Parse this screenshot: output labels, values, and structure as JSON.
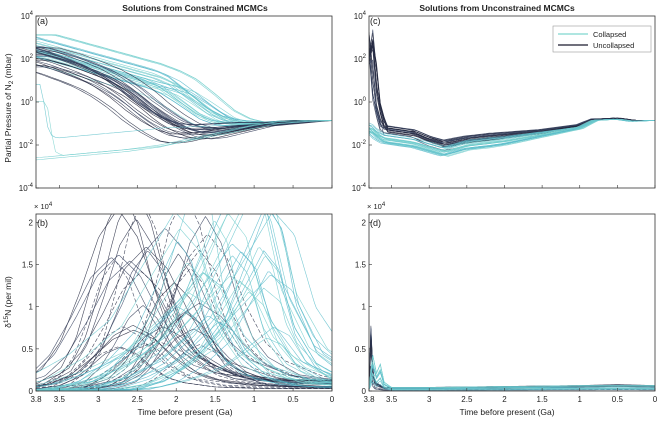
{
  "chart_data": [
    {
      "type": "line",
      "panel": "(a)",
      "title": "Solutions from Constrained MCMCs",
      "ylabel": "Partial Pressure of N",
      "ylabel_sub": "2",
      "ylabel_unit": " (mbar)",
      "xlabel": "",
      "yscale": "log",
      "xlim": [
        3.8,
        0
      ],
      "ylim_exp": [
        -4,
        4
      ],
      "ytick_base": "10",
      "ytick_exps": [
        "-4",
        "-2",
        "0",
        "2",
        "4"
      ],
      "xticks": [],
      "series": [
        {
          "name": "Collapsed (representative)",
          "x": [
            3.8,
            3.5,
            3.2,
            3.0,
            2.8,
            2.5,
            2.2,
            2.0,
            1.8,
            1.5,
            1.3,
            1.1,
            0.8,
            0.5,
            0.2,
            0
          ],
          "y_exp": [
            2.6,
            2.3,
            2.0,
            1.8,
            1.6,
            1.3,
            1.0,
            0.7,
            0.2,
            -0.6,
            -0.9,
            -1.0,
            -1.0,
            -0.9,
            -0.85,
            -0.85
          ]
        },
        {
          "name": "Uncollapsed (representative)",
          "x": [
            3.8,
            3.5,
            3.2,
            3.0,
            2.8,
            2.6,
            2.4,
            2.2,
            2.0,
            1.8,
            1.6,
            1.4,
            1.2,
            1.0,
            0.7,
            0.4,
            0.2,
            0
          ],
          "y_exp": [
            2.2,
            1.9,
            1.5,
            1.2,
            0.8,
            0.3,
            -0.3,
            -0.8,
            -1.2,
            -1.4,
            -1.4,
            -1.3,
            -1.2,
            -1.1,
            -1.0,
            -0.9,
            -0.85,
            -0.85
          ]
        },
        {
          "name": "Collapsed low branch",
          "x": [
            3.8,
            3.7,
            3.6,
            3.3,
            3.0,
            2.7,
            2.4,
            2.0,
            1.6,
            1.2,
            0.8,
            0.4,
            0
          ],
          "y_exp": [
            0.3,
            -2.0,
            -2.2,
            -2.1,
            -2.0,
            -1.9,
            -1.8,
            -1.6,
            -1.4,
            -1.2,
            -1.0,
            -0.9,
            -0.85
          ]
        }
      ]
    },
    {
      "type": "line",
      "panel": "(c)",
      "title": "Solutions from Unconstrained MCMCs",
      "yscale": "log",
      "xlim": [
        3.8,
        0
      ],
      "ylim_exp": [
        -4,
        4
      ],
      "ytick_base": "10",
      "ytick_exps": [
        "-4",
        "-2",
        "0",
        "2",
        "4"
      ],
      "legend": {
        "location": "top-right",
        "entries": [
          {
            "label": "Collapsed",
            "color": "#7fd6cf"
          },
          {
            "label": "Uncollapsed",
            "color": "#1a1a2e"
          }
        ]
      },
      "series": [
        {
          "name": "Uncollapsed (representative)",
          "x": [
            3.8,
            3.78,
            3.75,
            3.7,
            3.6,
            3.4,
            3.2,
            3.0,
            2.8,
            2.5,
            2.0,
            1.5,
            1.0,
            0.8,
            0.5,
            0.3,
            0
          ],
          "y_exp": [
            2.0,
            3.2,
            2.2,
            0.0,
            -1.3,
            -1.4,
            -1.5,
            -1.8,
            -2.0,
            -1.8,
            -1.6,
            -1.4,
            -1.1,
            -0.8,
            -0.75,
            -0.85,
            -0.85
          ]
        },
        {
          "name": "Collapsed (representative)",
          "x": [
            3.8,
            3.75,
            3.7,
            3.6,
            3.4,
            3.2,
            3.0,
            2.8,
            2.5,
            2.0,
            1.5,
            1.0,
            0.8,
            0.5,
            0.3,
            0
          ],
          "y_exp": [
            -1.2,
            -1.3,
            -1.5,
            -1.7,
            -1.8,
            -1.9,
            -2.1,
            -2.3,
            -2.0,
            -1.8,
            -1.5,
            -1.2,
            -0.85,
            -0.8,
            -0.9,
            -0.85
          ]
        }
      ]
    },
    {
      "type": "line",
      "panel": "(b)",
      "ylabel_delta": "δ",
      "ylabel_sup": "15",
      "ylabel_rest": "N (per mil)",
      "xlabel": "Time before present (Ga)",
      "yscale": "linear",
      "exponent_label": "× 10",
      "exponent_value": "4",
      "xlim": [
        3.8,
        0
      ],
      "ylim": [
        0,
        2.1
      ],
      "yticks": [
        "0",
        "0.5",
        "1",
        "1.5",
        "2"
      ],
      "xticks": [
        "3.8",
        "3.5",
        "3",
        "2.5",
        "2",
        "1.5",
        "1",
        "0.5",
        "0"
      ],
      "series": [
        {
          "name": "Uncollapsed peak",
          "x": [
            3.8,
            3.3,
            3.0,
            2.8,
            2.6,
            2.4,
            2.2,
            2.0,
            1.8,
            1.6,
            1.4,
            1.0,
            0.5,
            0
          ],
          "y": [
            0.0,
            0.05,
            0.15,
            0.35,
            0.7,
            1.1,
            1.3,
            1.1,
            0.7,
            0.4,
            0.25,
            0.12,
            0.08,
            0.07
          ]
        },
        {
          "name": "Collapsed peak",
          "x": [
            3.8,
            3.2,
            2.8,
            2.4,
            2.0,
            1.8,
            1.6,
            1.4,
            1.2,
            1.0,
            0.7,
            0.3,
            0
          ],
          "y": [
            0.0,
            0.02,
            0.1,
            0.3,
            0.6,
            0.9,
            1.2,
            1.5,
            1.3,
            0.7,
            0.3,
            0.12,
            0.08
          ]
        }
      ]
    },
    {
      "type": "line",
      "panel": "(d)",
      "xlabel": "Time before present (Ga)",
      "yscale": "linear",
      "exponent_label": "× 10",
      "exponent_value": "4",
      "xlim": [
        3.8,
        0
      ],
      "ylim": [
        0,
        2.1
      ],
      "yticks": [
        "0",
        "0.5",
        "1",
        "1.5",
        "2"
      ],
      "xticks": [
        "3.8",
        "3.5",
        "3",
        "2.5",
        "2",
        "1.5",
        "1",
        "0.5",
        "0"
      ],
      "series": [
        {
          "name": "Uncollapsed spike",
          "x": [
            3.8,
            3.78,
            3.76,
            3.72,
            3.6,
            3.0,
            2.0,
            1.0,
            0.5,
            0
          ],
          "y": [
            0.05,
            0.85,
            0.3,
            0.1,
            0.04,
            0.04,
            0.05,
            0.06,
            0.07,
            0.06
          ]
        },
        {
          "name": "Collapsed spike",
          "x": [
            3.8,
            3.75,
            3.7,
            3.65,
            3.6,
            3.5,
            3.0,
            2.0,
            1.0,
            0
          ],
          "y": [
            0.05,
            0.4,
            0.2,
            0.3,
            0.1,
            0.04,
            0.04,
            0.05,
            0.06,
            0.06
          ]
        }
      ]
    }
  ],
  "colors": {
    "collapsed": "#7fd6cf",
    "collapsed_mid": "#4fb3c9",
    "uncollapsed": "#1a1a2e",
    "uncollapsed_mid": "#3b4a6b",
    "axis": "#333333"
  }
}
